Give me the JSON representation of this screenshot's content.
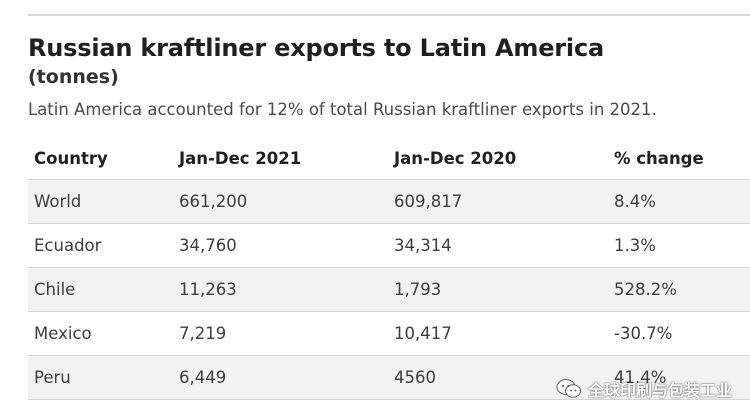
{
  "chart_data": {
    "type": "table",
    "title": "Russian kraftliner exports to Latin America",
    "subtitle": "(tonnes)",
    "note": "Latin America accounted for 12% of total Russian kraftliner exports in 2021.",
    "columns": [
      "Country",
      "Jan-Dec 2021",
      "Jan-Dec 2020",
      "% change"
    ],
    "rows": [
      [
        "World",
        "661,200",
        "609,817",
        "8.4%"
      ],
      [
        "Ecuador",
        "34,760",
        "34,314",
        "1.3%"
      ],
      [
        "Chile",
        "11,263",
        "1,793",
        "528.2%"
      ],
      [
        "Mexico",
        "7,219",
        "10,417",
        "-30.7%"
      ],
      [
        "Peru",
        "6,449",
        "4560",
        "41.4%"
      ]
    ]
  },
  "watermark": {
    "text": "全球印刷与包装工业",
    "icon": "wechat-icon"
  },
  "colors": {
    "stripe": "#f2f2f2",
    "rule": "#d6d6d6",
    "title": "#1f1f1f"
  }
}
